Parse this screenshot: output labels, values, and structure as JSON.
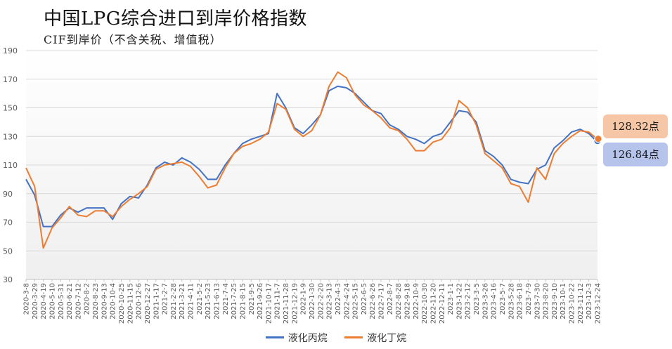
{
  "title": "中国LPG综合进口到岸价格指数",
  "subtitle": "CIF到岸价（不含关税、增值税）",
  "callouts": {
    "butane": "128.32点",
    "propane": "126.84点"
  },
  "colors": {
    "propane": "#4472c4",
    "butane": "#ed7d31",
    "grid": "#d9d9d9",
    "axis_text": "#595959"
  },
  "chart_data": {
    "type": "line",
    "ylim": [
      30,
      190
    ],
    "yticks": [
      30,
      50,
      70,
      90,
      110,
      130,
      150,
      170,
      190
    ],
    "x": [
      "2020-3-8",
      "2020-3-29",
      "2020-4-19",
      "2020-5-10",
      "2020-5-31",
      "2020-6-21",
      "2020-7-12",
      "2020-8-2",
      "2020-8-23",
      "2020-9-13",
      "2020-10-4",
      "2020-10-25",
      "2020-11-15",
      "2020-12-6",
      "2020-12-27",
      "2021-1-17",
      "2021-2-7",
      "2021-2-28",
      "2021-3-21",
      "2021-4-11",
      "2021-5-2",
      "2021-5-23",
      "2021-6-13",
      "2021-7-4",
      "2021-7-25",
      "2021-8-15",
      "2021-9-5",
      "2021-9-26",
      "2021-10-17",
      "2021-11-7",
      "2021-11-28",
      "2021-12-19",
      "2022-1-9",
      "2022-1-30",
      "2022-2-20",
      "2022-3-13",
      "2022-4-3",
      "2022-4-24",
      "2022-5-15",
      "2022-6-5",
      "2022-6-26",
      "2022-7-17",
      "2022-8-7",
      "2022-8-28",
      "2022-9-18",
      "2022-10-9",
      "2022-10-30",
      "2022-11-20",
      "2022-12-11",
      "2023-1-1",
      "2023-1-22",
      "2023-2-12",
      "2023-3-5",
      "2023-3-26",
      "2023-4-16",
      "2023-5-7",
      "2023-5-28",
      "2023-6-18",
      "2023-7-9",
      "2023-7-30",
      "2023-8-20",
      "2023-9-10",
      "2023-10-1",
      "2023-10-22",
      "2023-11-12",
      "2023-12-3",
      "2023-12-24"
    ],
    "xtick_labels": [
      "2020-3-8",
      "2020-3-29",
      "2020-4-19",
      "2020-5-10",
      "2020-5-31",
      "2020-6-21",
      "2020-7-12",
      "2020-8-2",
      "2020-8-23",
      "2020-9-13",
      "2020-10-4",
      "2020-10-25",
      "2020-11-15",
      "2020-12-6",
      "2020-12-27",
      "2021-1-17",
      "2021-2-7",
      "2021-2-28",
      "2021-3-21",
      "2021-4-11",
      "2021-5-2",
      "2021-5-23",
      "2021-6-13",
      "2021-7-4",
      "2021-7-25",
      "2021-8-15",
      "2021-9-5",
      "2021-9-26",
      "2021-10-17",
      "2021-11-7",
      "2021-11-28",
      "2021-12-19",
      "2022-1-9",
      "2022-1-30",
      "2022-2-20",
      "2022-3-13",
      "2022-4-3",
      "2022-4-24",
      "2022-5-15",
      "2022-6-5",
      "2022-6-26",
      "2022-7-17",
      "2022-8-7",
      "2022-8-28",
      "2022-9-18",
      "2022-10-9",
      "2022-10-30",
      "2022-11-20",
      "2022-12-11",
      "2023-1-1",
      "2023-1-22",
      "2023-2-12",
      "2023-3-5",
      "2023-3-26",
      "2023-4-16",
      "2023-5-7",
      "2023-5-28",
      "2023-6-18",
      "2023-7-9",
      "2023-7-30",
      "2023-8-20",
      "2023-9-10",
      "2023-10-1",
      "2023-10-22",
      "2023-11-12",
      "2023-12-3",
      "2023-12-24"
    ],
    "series": [
      {
        "name": "液化丙烷",
        "values": [
          100,
          89,
          67,
          67,
          75,
          80,
          77,
          80,
          80,
          80,
          72,
          83,
          88,
          87,
          96,
          108,
          112,
          110,
          115,
          112,
          107,
          100,
          100,
          110,
          118,
          125,
          128,
          130,
          132,
          160,
          150,
          136,
          132,
          138,
          145,
          162,
          165,
          164,
          160,
          154,
          148,
          146,
          138,
          135,
          130,
          128,
          125,
          130,
          132,
          140,
          148,
          147,
          140,
          120,
          116,
          110,
          100,
          98,
          97,
          107,
          110,
          122,
          127,
          133,
          135,
          132,
          126
        ],
        "end_value": 126.84
      },
      {
        "name": "液化丁烷",
        "values": [
          108,
          95,
          52,
          66,
          73,
          81,
          75,
          74,
          78,
          78,
          74,
          81,
          86,
          90,
          95,
          107,
          110,
          111,
          112,
          109,
          102,
          94,
          96,
          108,
          118,
          123,
          125,
          128,
          133,
          153,
          149,
          135,
          130,
          134,
          145,
          165,
          175,
          171,
          159,
          152,
          148,
          143,
          136,
          134,
          128,
          120,
          120,
          126,
          128,
          136,
          155,
          150,
          138,
          118,
          113,
          108,
          97,
          95,
          84,
          108,
          100,
          118,
          125,
          130,
          134,
          133,
          128
        ],
        "end_value": 128.32
      }
    ],
    "legend": [
      "液化丙烷",
      "液化丁烷"
    ],
    "legend_position": "bottom",
    "grid": true
  }
}
